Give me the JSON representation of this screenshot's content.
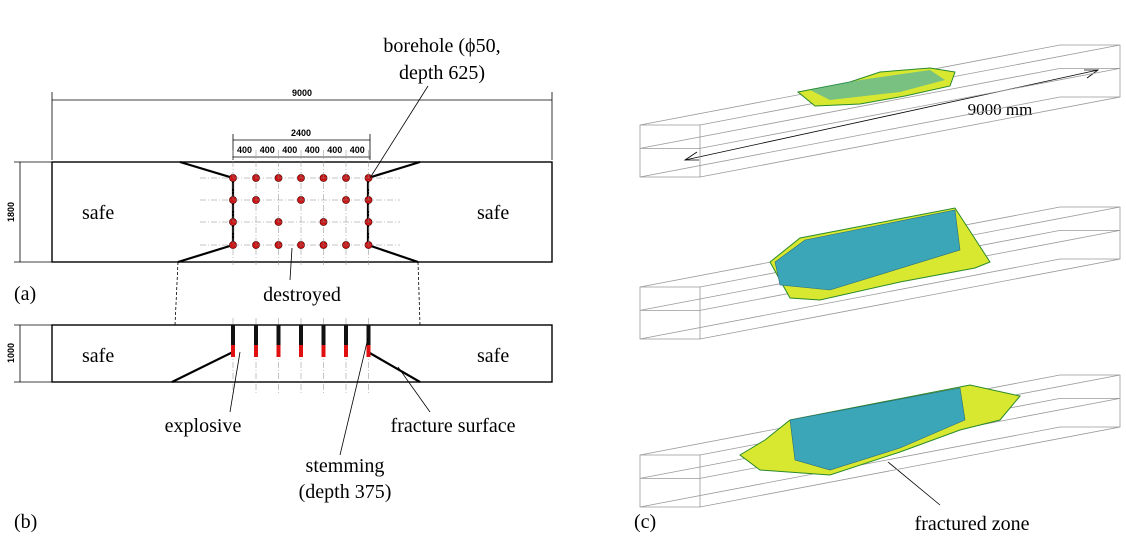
{
  "panel_a": {
    "label": "(a)",
    "total_length": "9000",
    "blast_length": "2400",
    "spacings": [
      "400",
      "400",
      "400",
      "400",
      "400",
      "400"
    ],
    "height": "1800",
    "left_zone": "safe",
    "right_zone": "safe",
    "borehole_label": [
      "borehole (ϕ50,",
      "depth 625)"
    ],
    "destroyed_label": "destroyed"
  },
  "panel_b": {
    "label": "(b)",
    "height": "1000",
    "left_zone": "safe",
    "right_zone": "safe",
    "explosive_label": "explosive",
    "fracture_label": "fracture surface",
    "stemming_label": [
      "stemming",
      "(depth 375)"
    ]
  },
  "panel_c": {
    "label": "(c)",
    "length_label": "9000 mm",
    "fractured_label": "fractured zone"
  }
}
